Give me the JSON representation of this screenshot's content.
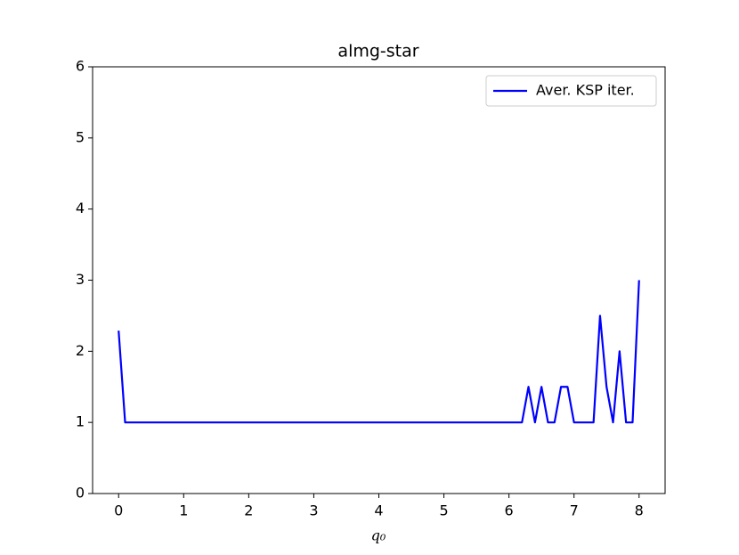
{
  "chart_data": {
    "type": "line",
    "title": "almg-star",
    "x_label": "q₀",
    "x": [
      0,
      0.1,
      0.2,
      0.3,
      0.4,
      0.5,
      0.6,
      0.7,
      0.8,
      0.9,
      1,
      1.1,
      1.2,
      1.3,
      1.4,
      1.5,
      1.6,
      1.7,
      1.8,
      1.9,
      2,
      2.1,
      2.2,
      2.3,
      2.4,
      2.5,
      2.6,
      2.7,
      2.8,
      2.9,
      3,
      3.1,
      3.2,
      3.3,
      3.4,
      3.5,
      3.6,
      3.7,
      3.8,
      3.9,
      4,
      4.1,
      4.2,
      4.3,
      4.4,
      4.5,
      4.6,
      4.7,
      4.8,
      4.9,
      5,
      5.1,
      5.2,
      5.3,
      5.4,
      5.5,
      5.6,
      5.7,
      5.8,
      5.9,
      6,
      6.1,
      6.2,
      6.3,
      6.4,
      6.5,
      6.6,
      6.7,
      6.8,
      6.9,
      7,
      7.1,
      7.2,
      7.3,
      7.4,
      7.5,
      7.6,
      7.7,
      7.8,
      7.9,
      8
    ],
    "series": [
      {
        "name": "Aver. KSP iter.",
        "color": "#0000ff",
        "values": [
          2.29,
          1,
          1,
          1,
          1,
          1,
          1,
          1,
          1,
          1,
          1,
          1,
          1,
          1,
          1,
          1,
          1,
          1,
          1,
          1,
          1,
          1,
          1,
          1,
          1,
          1,
          1,
          1,
          1,
          1,
          1,
          1,
          1,
          1,
          1,
          1,
          1,
          1,
          1,
          1,
          1,
          1,
          1,
          1,
          1,
          1,
          1,
          1,
          1,
          1,
          1,
          1,
          1,
          1,
          1,
          1,
          1,
          1,
          1,
          1,
          1,
          1,
          1,
          1.5,
          1,
          1.5,
          1,
          1,
          1.5,
          1.5,
          1,
          1,
          1,
          1,
          2.5,
          1.5,
          1,
          2,
          1,
          1,
          3
        ]
      }
    ],
    "xlim": [
      -0.4,
      8.4
    ],
    "xticks": [
      0,
      1,
      2,
      3,
      4,
      5,
      6,
      7,
      8
    ],
    "ylim": [
      0,
      6
    ],
    "yticks": [
      0,
      1,
      2,
      3,
      4,
      5,
      6
    ],
    "grid": false,
    "legend": "upper right"
  }
}
